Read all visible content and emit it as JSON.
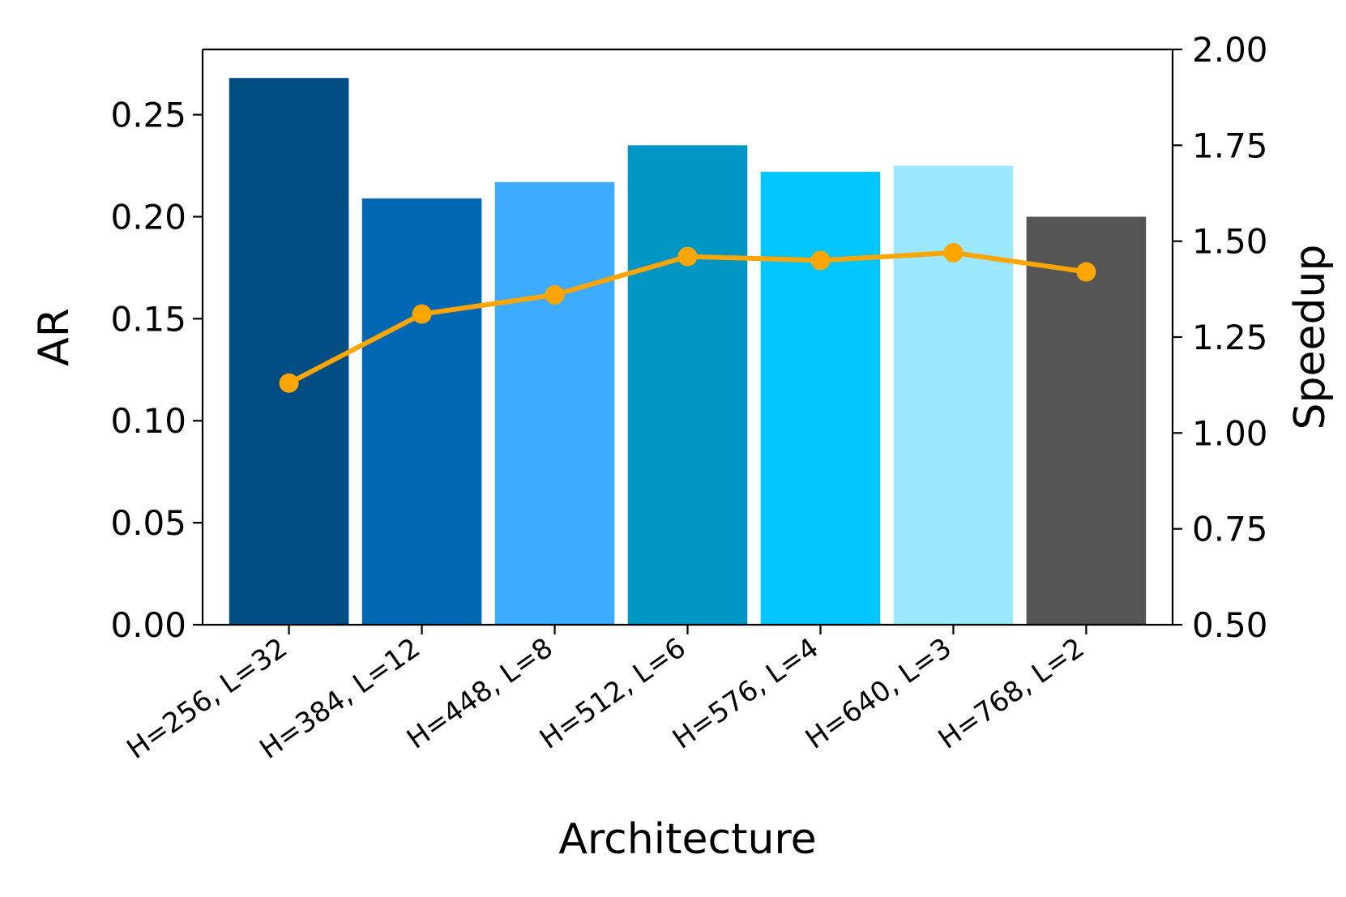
{
  "chart_data": {
    "type": "bar",
    "title": "",
    "xlabel": "Architecture",
    "ylabel": "AR",
    "y2label": "Speedup",
    "categories": [
      "H=256, L=32",
      "H=384, L=12",
      "H=448, L=8",
      "H=512, L=6",
      "H=576, L=4",
      "H=640, L=3",
      "H=768, L=2"
    ],
    "ylim": [
      0,
      0.282
    ],
    "y2lim": [
      0.5,
      2.0
    ],
    "yticks": [
      "0.00",
      "0.05",
      "0.10",
      "0.15",
      "0.20",
      "0.25"
    ],
    "y2ticks": [
      "0.50",
      "0.75",
      "1.00",
      "1.25",
      "1.50",
      "1.75",
      "2.00"
    ],
    "grid": false,
    "series": [
      {
        "type": "bar",
        "axis": "left",
        "values": [
          0.268,
          0.209,
          0.217,
          0.235,
          0.222,
          0.225,
          0.2
        ],
        "colors": [
          "#004d84",
          "#0068b3",
          "#3dabff",
          "#0096c4",
          "#00c6ff",
          "#9be8ff",
          "#555555"
        ]
      },
      {
        "type": "line",
        "axis": "right",
        "values": [
          1.13,
          1.31,
          1.36,
          1.46,
          1.45,
          1.47,
          1.42
        ],
        "color": "#ffa500"
      }
    ]
  }
}
